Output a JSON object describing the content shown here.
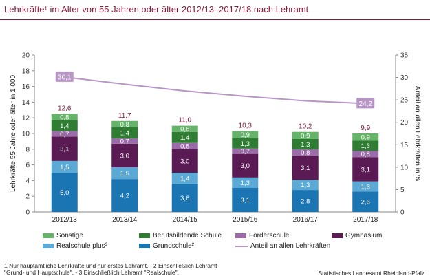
{
  "title": "Lehrkräfte¹ im Alter von 55 Jahren oder älter 2012/13–2017/18 nach Lehramt",
  "footnote": {
    "line1": "1 Nur hauptamtliche Lehrkräfte und nur erstes Lehramt. - 2 Einschließlich Lehramt",
    "line2": "\"Grund- und Hauptschule\". - 3 Einschließlich Lehramt \"Realschule\"."
  },
  "source": "Statistisches Landesamt Rheinland-Pfalz",
  "colors": {
    "grundschule": "#1b75b3",
    "realschule": "#5baad6",
    "gymnasium": "#5a1a54",
    "foerderschule": "#9b6aa8",
    "berufsbildende": "#2e7d32",
    "sonstige": "#66b36a",
    "line": "#b796c6",
    "total_label": "#8b1a3a"
  },
  "chart_data": {
    "type": "bar",
    "stacked": true,
    "categories": [
      "2012/13",
      "2013/14",
      "2014/15",
      "2015/16",
      "2016/17",
      "2017/18"
    ],
    "series": [
      {
        "name": "Grundschule²",
        "key": "grundschule",
        "values": [
          5.0,
          4.2,
          3.6,
          3.1,
          2.8,
          2.6
        ]
      },
      {
        "name": "Realschule plus³",
        "key": "realschule",
        "values": [
          1.5,
          1.5,
          1.4,
          1.3,
          1.3,
          1.3
        ]
      },
      {
        "name": "Gymnasium",
        "key": "gymnasium",
        "values": [
          3.1,
          3.0,
          3.0,
          3.0,
          3.1,
          3.1
        ]
      },
      {
        "name": "Förderschule",
        "key": "foerderschule",
        "values": [
          0.7,
          0.7,
          0.8,
          0.7,
          0.8,
          0.8
        ]
      },
      {
        "name": "Berufsbildende Schule",
        "key": "berufsbildende",
        "values": [
          1.4,
          1.4,
          1.4,
          1.3,
          1.3,
          1.3
        ]
      },
      {
        "name": "Sonstige",
        "key": "sonstige",
        "values": [
          0.8,
          0.8,
          0.8,
          0.9,
          0.9,
          0.9
        ]
      }
    ],
    "totals": [
      "12,6",
      "11,7",
      "11,0",
      "10,3",
      "10,2",
      "9,9"
    ],
    "value_labels": [
      [
        "5,0",
        "1,5",
        "3,1",
        "0,7",
        "1,4",
        "0,8"
      ],
      [
        "4,2",
        "1,5",
        "3,0",
        "0,7",
        "1,4",
        "0,8"
      ],
      [
        "3,6",
        "1,4",
        "3,0",
        "0,8",
        "1,4",
        "0,8"
      ],
      [
        "3,1",
        "1,3",
        "3,0",
        "0,7",
        "1,3",
        "0,9"
      ],
      [
        "2,8",
        "1,3",
        "3,1",
        "0,8",
        "1,3",
        "0,9"
      ],
      [
        "2,6",
        "1,3",
        "3,1",
        "0,8",
        "1,3",
        "0,9"
      ]
    ],
    "line_series": {
      "name": "Anteil an allen Lehrkräften",
      "values": [
        30.1,
        28.5,
        27.0,
        25.8,
        24.8,
        24.2
      ],
      "labels": [
        "30,1",
        "",
        "",
        "",
        "",
        "24,2"
      ],
      "axis": "right"
    },
    "ylabel": "Lehrkräfte 55 Jahre oder älter in 1 000",
    "y2label": "Anteil an allen Lehrkräften in %",
    "ylim": [
      0,
      20
    ],
    "y2lim": [
      0,
      35
    ],
    "yticks": [
      "0",
      "2",
      "4",
      "6",
      "8",
      "10",
      "12",
      "14",
      "16",
      "18",
      "20"
    ],
    "y2ticks": [
      "0",
      "5",
      "10",
      "15",
      "20",
      "25",
      "30",
      "35"
    ],
    "grid": false,
    "legend_position": "bottom"
  },
  "legend": [
    {
      "label": "Sonstige",
      "key": "sonstige",
      "kind": "box"
    },
    {
      "label": "Berufsbildende Schule",
      "key": "berufsbildende",
      "kind": "box"
    },
    {
      "label": "Förderschule",
      "key": "foerderschule",
      "kind": "box"
    },
    {
      "label": "Gymnasium",
      "key": "gymnasium",
      "kind": "box"
    },
    {
      "label": "Realschule plus³",
      "key": "realschule",
      "kind": "box"
    },
    {
      "label": "Grundschule²",
      "key": "grundschule",
      "kind": "box"
    },
    {
      "label": "Anteil an allen Lehrkräften",
      "key": "line",
      "kind": "line"
    }
  ]
}
